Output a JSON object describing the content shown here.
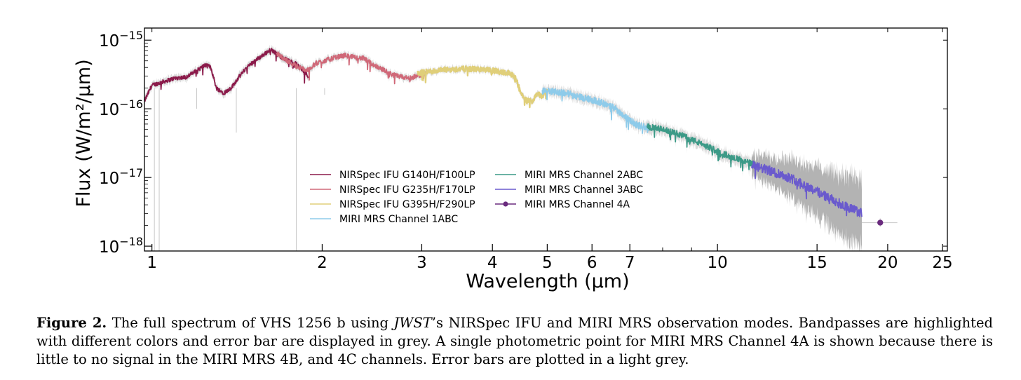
{
  "chart_data": {
    "type": "line",
    "xlabel": "Wavelength (μm)",
    "ylabel": "Flux (W/m²/μm)",
    "x_scale": "log",
    "y_scale": "log",
    "xlim": [
      0.97,
      25.5
    ],
    "ylim": [
      8.5e-19,
      1.5e-15
    ],
    "x_ticks": [
      1,
      2,
      3,
      4,
      5,
      6,
      7,
      10,
      15,
      20,
      25
    ],
    "y_ticks": [
      1e-18,
      1e-17,
      1e-16,
      1e-15
    ],
    "y_tick_labels": [
      {
        "mantissa": "10",
        "exponent": "−18"
      },
      {
        "mantissa": "10",
        "exponent": "−17"
      },
      {
        "mantissa": "10",
        "exponent": "−16"
      },
      {
        "mantissa": "10",
        "exponent": "−15"
      }
    ],
    "legend_placement": "lower-center",
    "series": [
      {
        "name": "NIRSpec IFU G140H/F100LP",
        "color": "#8b1a4a",
        "x": [
          0.97,
          1.0,
          1.05,
          1.1,
          1.15,
          1.2,
          1.24,
          1.27,
          1.3,
          1.34,
          1.38,
          1.42,
          1.47,
          1.52,
          1.57,
          1.62,
          1.66,
          1.7,
          1.75,
          1.8,
          1.84,
          1.89
        ],
        "y": [
          1.3e-16,
          2.2e-16,
          2.5e-16,
          2.8e-16,
          2.9e-16,
          3.6e-16,
          4.3e-16,
          4.1e-16,
          2e-16,
          1.7e-16,
          2e-16,
          2.8e-16,
          4e-16,
          5e-16,
          6e-16,
          7.3e-16,
          6.5e-16,
          5.5e-16,
          5e-16,
          4.5e-16,
          3.8e-16,
          3e-16
        ]
      },
      {
        "name": "NIRSpec IFU G235H/F170LP",
        "color": "#d06878",
        "x": [
          1.66,
          1.72,
          1.8,
          1.88,
          1.95,
          2.05,
          2.15,
          2.2,
          2.28,
          2.37,
          2.45,
          2.55,
          2.65,
          2.75,
          2.85,
          2.95,
          3.05
        ],
        "y": [
          6.5e-16,
          5.2e-16,
          4.2e-16,
          3.6e-16,
          4.6e-16,
          5.2e-16,
          5.8e-16,
          6e-16,
          5.6e-16,
          5.4e-16,
          4.5e-16,
          3.8e-16,
          3.2e-16,
          2.9e-16,
          2.8e-16,
          3e-16,
          3.3e-16
        ]
      },
      {
        "name": "NIRSpec IFU G395H/F290LP",
        "color": "#e0cf7a",
        "x": [
          2.95,
          3.1,
          3.3,
          3.5,
          3.7,
          3.9,
          4.1,
          4.2,
          4.3,
          4.4,
          4.5,
          4.6,
          4.7,
          4.8,
          4.9,
          5.0
        ],
        "y": [
          3.3e-16,
          3.5e-16,
          3.7e-16,
          3.8e-16,
          3.8e-16,
          3.7e-16,
          3.5e-16,
          3.4e-16,
          3.3e-16,
          2.8e-16,
          1.6e-16,
          1.3e-16,
          1.3e-16,
          1.7e-16,
          1.5e-16,
          1.8e-16
        ]
      },
      {
        "name": "MIRI MRS Channel 1ABC",
        "color": "#8ecbea",
        "x": [
          4.9,
          5.1,
          5.4,
          5.7,
          6.0,
          6.3,
          6.6,
          6.9,
          7.2,
          7.6
        ],
        "y": [
          1.8e-16,
          1.8e-16,
          1.7e-16,
          1.5e-16,
          1.35e-16,
          1.2e-16,
          1e-16,
          7.5e-17,
          5.8e-17,
          5.3e-17
        ]
      },
      {
        "name": "MIRI MRS Channel 2ABC",
        "color": "#3c9a87",
        "x": [
          7.5,
          8.0,
          8.6,
          9.2,
          9.8,
          10.4,
          11.0,
          11.7
        ],
        "y": [
          5.5e-17,
          5e-17,
          4.2e-17,
          3.3e-17,
          2.6e-17,
          2.1e-17,
          1.8e-17,
          1.5e-17
        ]
      },
      {
        "name": "MIRI MRS Channel 3ABC",
        "color": "#6a5acd",
        "x": [
          11.5,
          12.2,
          13.0,
          13.8,
          14.6,
          15.4,
          16.2,
          17.1,
          18.0
        ],
        "y": [
          1.5e-17,
          1.3e-17,
          1.1e-17,
          9e-18,
          7e-18,
          5.6e-18,
          4.4e-18,
          3.6e-18,
          3e-18
        ]
      },
      {
        "name": "MIRI MRS Channel 4A",
        "color": "#6a2b7e",
        "x": [
          19.4
        ],
        "y": [
          2.2e-18
        ],
        "xerr": [
          1.4
        ],
        "marker": "circle"
      }
    ]
  },
  "caption": {
    "label": "Figure 2.",
    "text_1": " The full spectrum of VHS 1256 b using ",
    "jwst": "JWST",
    "text_2": "’s NIRSpec IFU and MIRI MRS observation modes. Bandpasses are highlighted with different colors and error bar are displayed in grey. A single photometric point for MIRI MRS Channel 4A is shown because there is little to no signal in the MIRI MRS 4B, and 4C channels. Error bars are plotted in a light grey."
  }
}
